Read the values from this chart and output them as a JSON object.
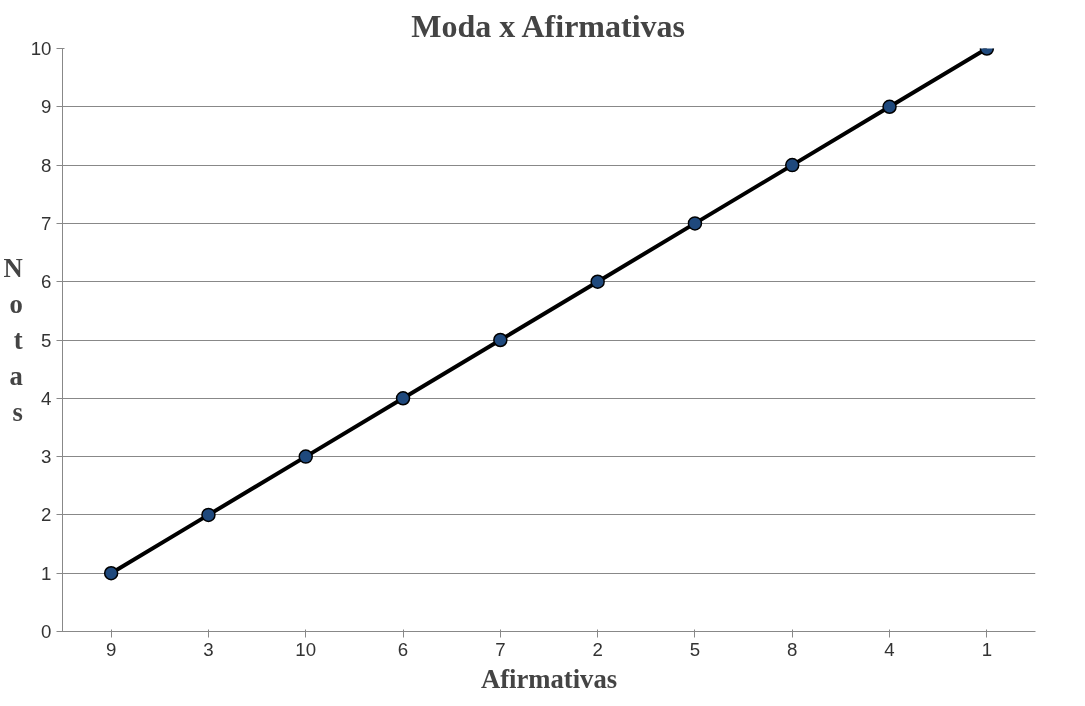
{
  "chart_data": {
    "type": "line",
    "title": "Moda x Afirmativas",
    "xlabel": "Afirmativas",
    "ylabel": "Notas",
    "categories": [
      "9",
      "3",
      "10",
      "6",
      "7",
      "2",
      "5",
      "8",
      "4",
      "1"
    ],
    "series": [
      {
        "color": "#000000",
        "colors": [
          "#1f497d",
          "#1f497d",
          "#1f497d",
          "#1f497d",
          "#1f497d",
          "#1f497d",
          "#1f497d",
          "#1f497d",
          "#1f497d",
          "#1f497d"
        ],
        "values": [
          1,
          2,
          3,
          4,
          5,
          6,
          7,
          8,
          9,
          10
        ]
      }
    ],
    "ylim": [
      0,
      10
    ],
    "yticks": [
      0,
      1,
      2,
      3,
      4,
      5,
      6,
      7,
      8,
      9,
      10
    ],
    "grid": "y",
    "marker": "circle",
    "line_style": "solid"
  }
}
